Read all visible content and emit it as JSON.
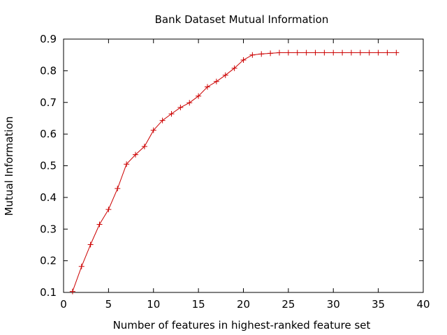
{
  "chart_data": {
    "type": "line",
    "title": "Bank Dataset Mutual Information",
    "xlabel": "Number of features in highest-ranked feature set",
    "ylabel": "Mutual Information",
    "xlim": [
      0,
      40
    ],
    "ylim": [
      0.1,
      0.9
    ],
    "x_ticks": [
      0,
      5,
      10,
      15,
      20,
      25,
      30,
      35,
      40
    ],
    "y_ticks": [
      0.1,
      0.2,
      0.3,
      0.4,
      0.5,
      0.6,
      0.7,
      0.8,
      0.9
    ],
    "x_tick_labels": [
      "0",
      "5",
      "10",
      "15",
      "20",
      "25",
      "30",
      "35",
      "40"
    ],
    "y_tick_labels": [
      "0.1",
      "0.2",
      "0.3",
      "0.4",
      "0.5",
      "0.6",
      "0.7",
      "0.8",
      "0.9"
    ],
    "grid": false,
    "legend": "none",
    "series": [
      {
        "color": "#cc0000",
        "marker": "plus",
        "x": [
          1,
          2,
          3,
          4,
          5,
          6,
          7,
          8,
          9,
          10,
          11,
          12,
          13,
          14,
          15,
          16,
          17,
          18,
          19,
          20,
          21,
          22,
          23,
          24,
          25,
          26,
          27,
          28,
          29,
          30,
          31,
          32,
          33,
          34,
          35,
          36,
          37
        ],
        "y": [
          0.103,
          0.182,
          0.251,
          0.315,
          0.362,
          0.428,
          0.505,
          0.535,
          0.561,
          0.612,
          0.643,
          0.664,
          0.684,
          0.699,
          0.72,
          0.749,
          0.766,
          0.786,
          0.808,
          0.834,
          0.85,
          0.853,
          0.855,
          0.857,
          0.857,
          0.857,
          0.857,
          0.857,
          0.857,
          0.857,
          0.857,
          0.857,
          0.857,
          0.857,
          0.857,
          0.857,
          0.857
        ]
      }
    ]
  }
}
